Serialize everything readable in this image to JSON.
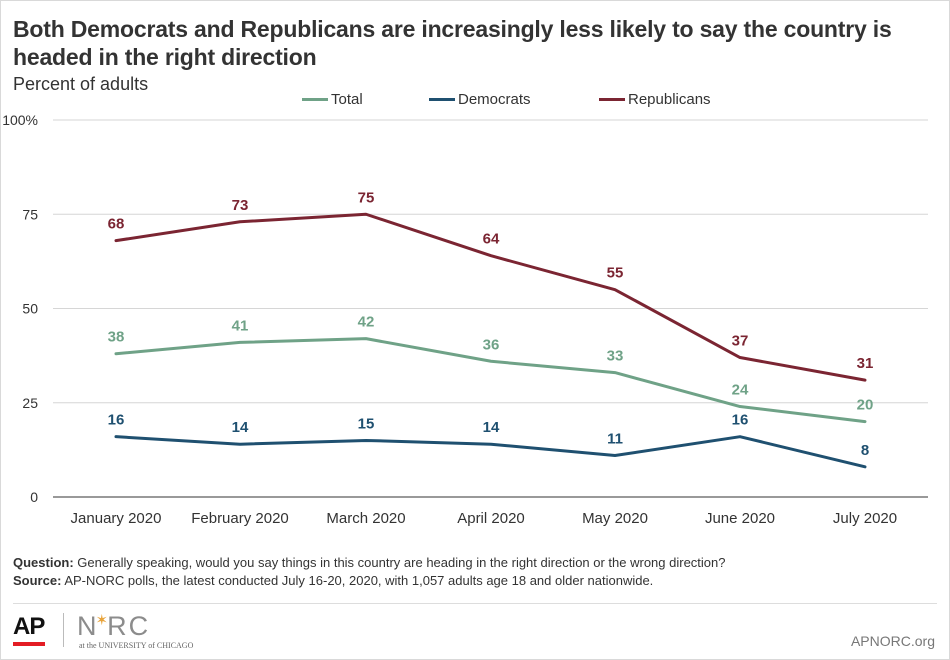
{
  "header": {
    "title": "Both Democrats and Republicans are increasingly less likely to say the country is headed in the right direction",
    "subtitle": "Percent of adults"
  },
  "legend": [
    {
      "label": "Total",
      "color": "#6fa287"
    },
    {
      "label": "Democrats",
      "color": "#1f5070"
    },
    {
      "label": "Republicans",
      "color": "#7b2532"
    }
  ],
  "chart_data": {
    "type": "line",
    "categories": [
      "January 2020",
      "February 2020",
      "March 2020",
      "April 2020",
      "May 2020",
      "June 2020",
      "July 2020"
    ],
    "series": [
      {
        "name": "Total",
        "color": "#6fa287",
        "label_color": "#6fa287",
        "values": [
          38,
          41,
          42,
          36,
          33,
          24,
          20
        ]
      },
      {
        "name": "Democrats",
        "color": "#1f5070",
        "label_color": "#1f5070",
        "values": [
          16,
          14,
          15,
          14,
          11,
          16,
          8
        ]
      },
      {
        "name": "Republicans",
        "color": "#7b2532",
        "label_color": "#7b2532",
        "values": [
          68,
          73,
          75,
          64,
          55,
          37,
          31
        ]
      }
    ],
    "yticks": [
      "0",
      "25",
      "50",
      "75",
      "100%"
    ],
    "ytick_values": [
      0,
      25,
      50,
      75,
      100
    ],
    "ylim": [
      0,
      100
    ],
    "grid": true,
    "legend_position": "top"
  },
  "footnote": {
    "question_label": "Question:",
    "question_text": "Generally speaking, would you say things in this country are heading in the right direction or the wrong direction?",
    "source_label": "Source:",
    "source_text": "AP-NORC polls, the latest conducted July 16-20, 2020, with 1,057 adults age 18 and older nationwide."
  },
  "branding": {
    "ap": "AP",
    "norc_prefix": "N",
    "norc_suffix": "RC",
    "norc_sub": "at the UNIVERSITY of CHICAGO",
    "site": "APNORC.org"
  }
}
